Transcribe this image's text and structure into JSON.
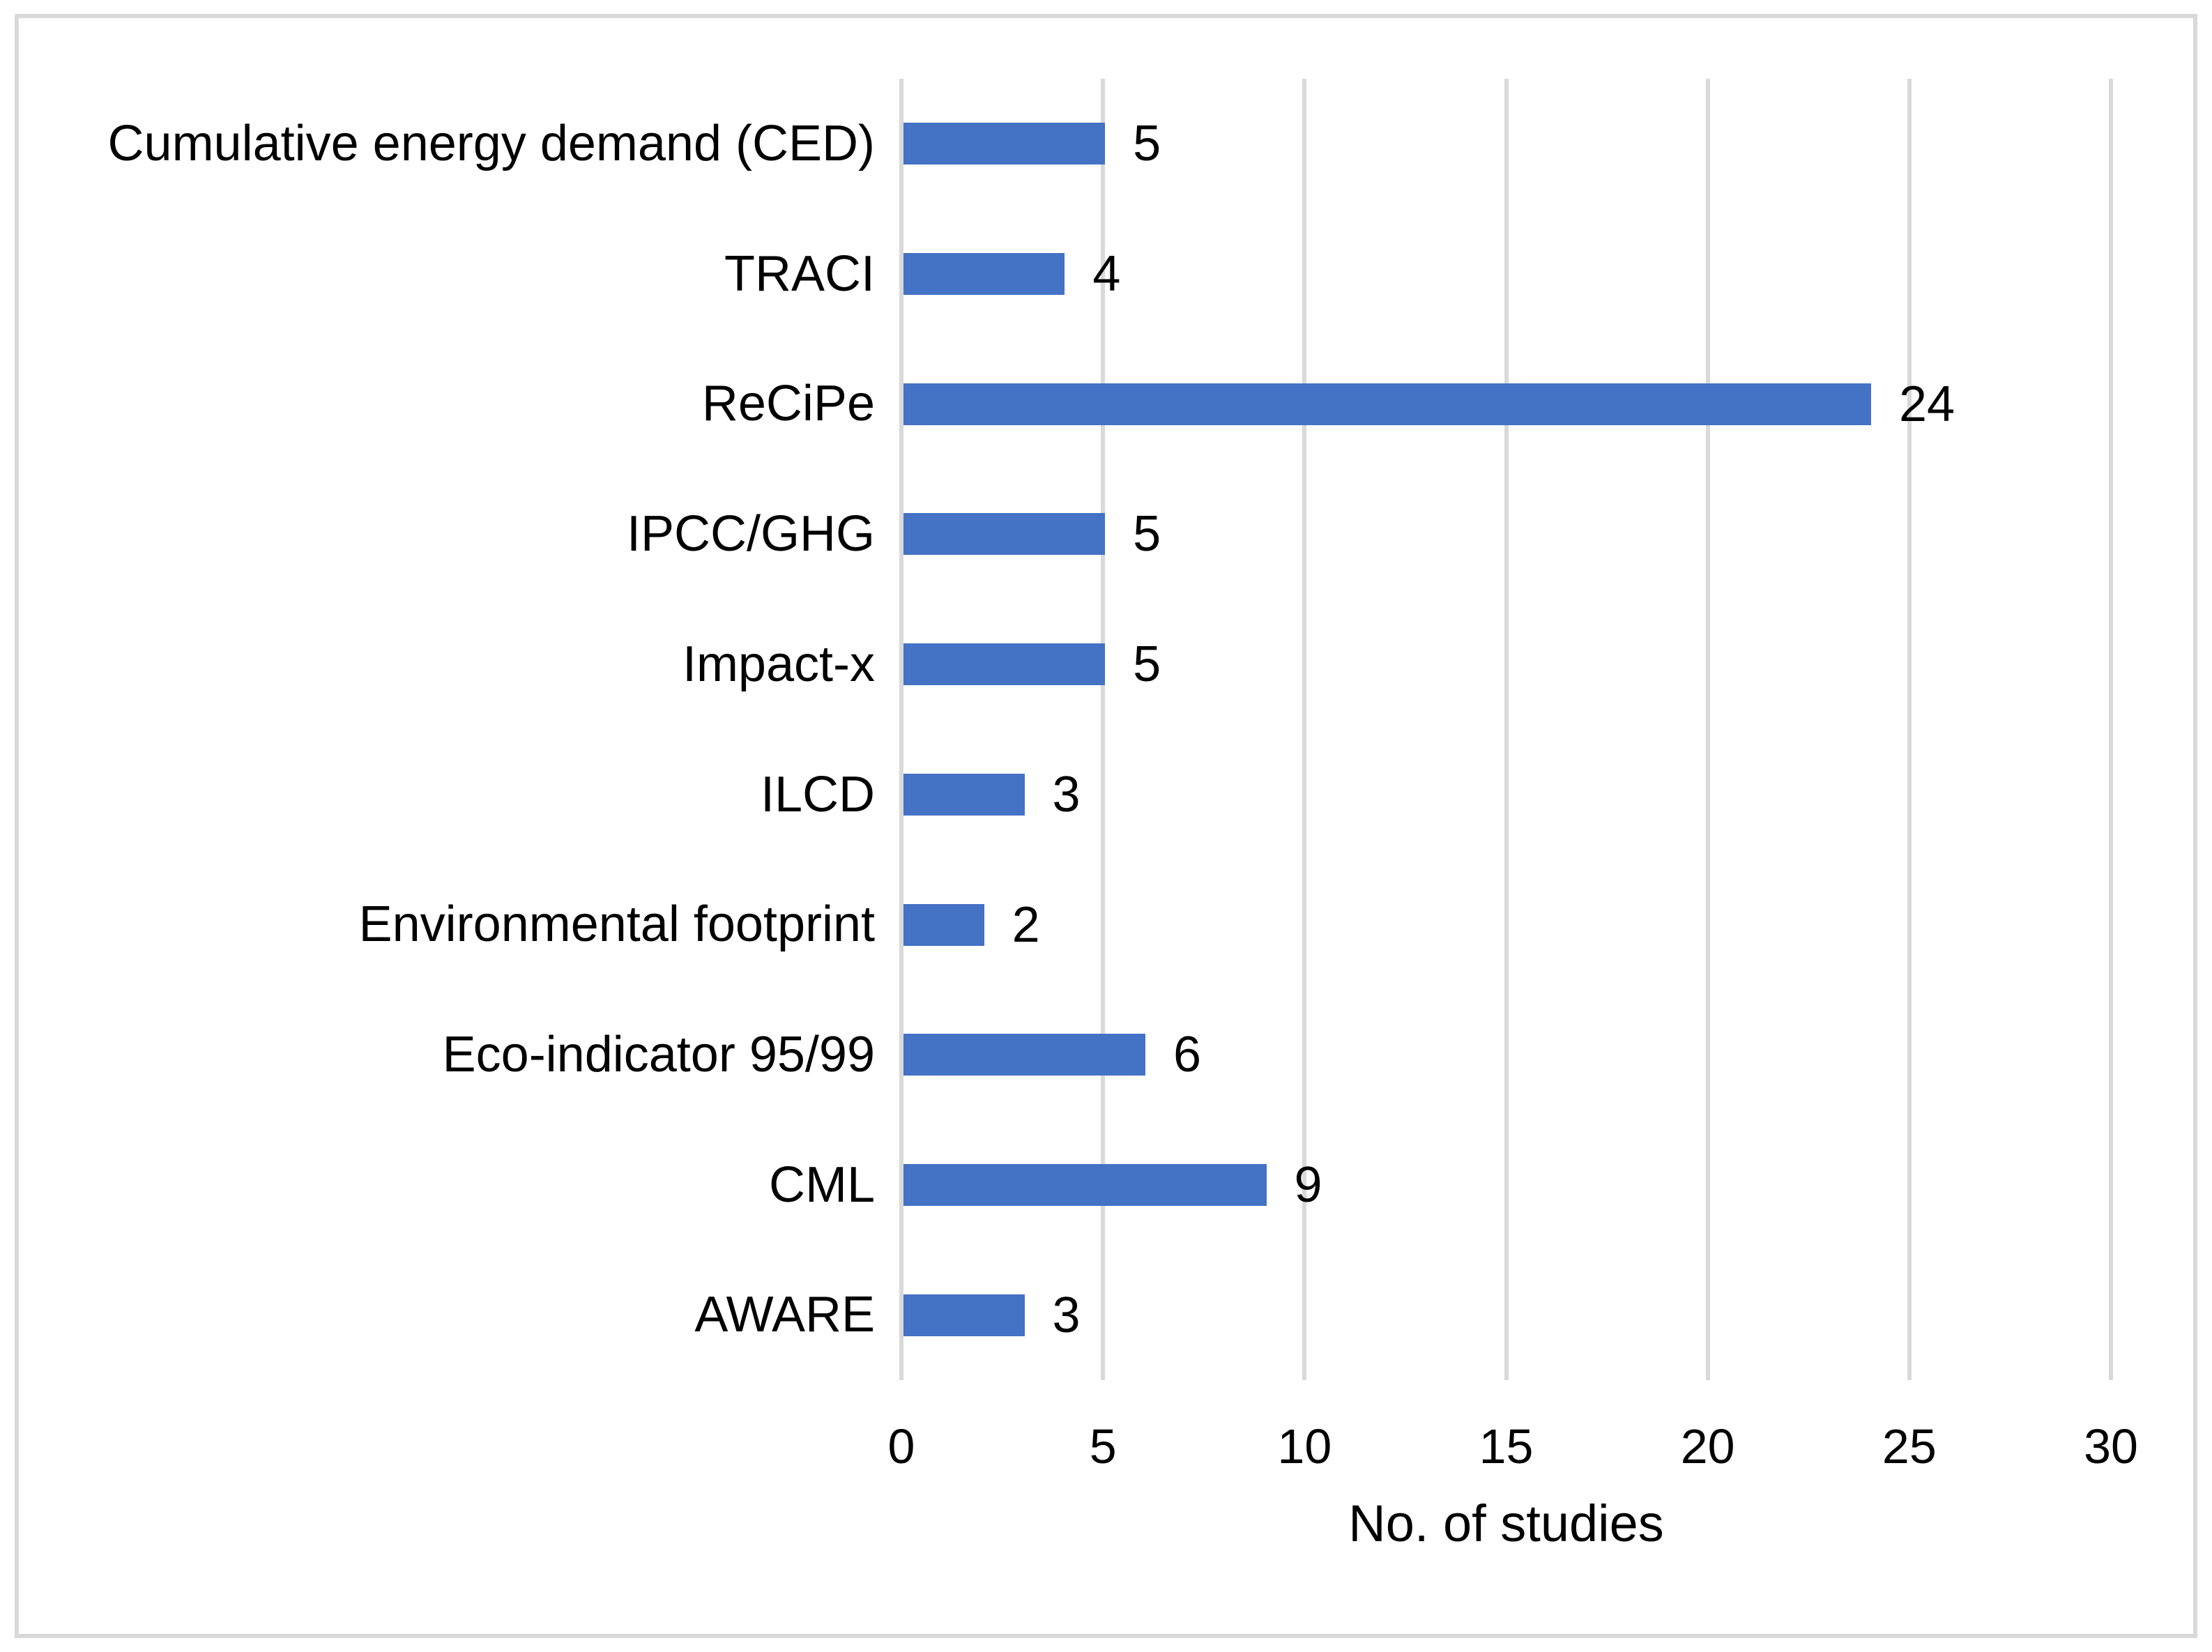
{
  "chart_data": {
    "type": "bar",
    "orientation": "horizontal",
    "title": "",
    "xlabel": "No. of studies",
    "xlim": [
      0,
      30
    ],
    "xticks": [
      0,
      5,
      10,
      15,
      20,
      25,
      30
    ],
    "grid": "vertical-gridlines",
    "legend": "none",
    "categories": [
      "Cumulative energy demand (CED)",
      "TRACI",
      "ReCiPe",
      "IPCC/GHG",
      "Impact-x",
      "ILCD",
      "Environmental footprint",
      "Eco-indicator 95/99",
      "CML",
      "AWARE"
    ],
    "values": [
      5,
      4,
      24,
      5,
      5,
      3,
      2,
      6,
      9,
      3
    ],
    "data_labels": [
      "5",
      "4",
      "24",
      "5",
      "5",
      "3",
      "2",
      "6",
      "9",
      "3"
    ],
    "colors": {
      "bar": "#4472C4",
      "gridline": "#D9D9D9",
      "figure_border": "#D9D9D9",
      "text": "#000000",
      "background": "#FFFFFF"
    }
  }
}
